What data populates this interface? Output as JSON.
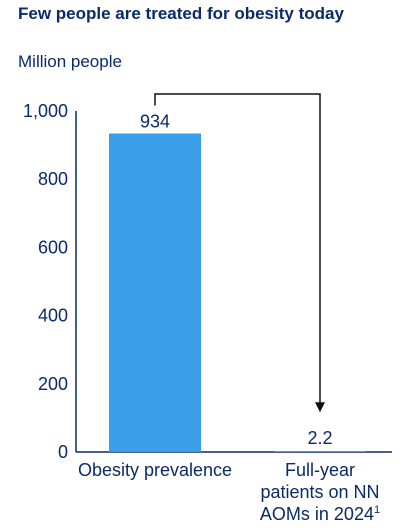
{
  "chart_data": {
    "type": "bar",
    "title": "Few people are treated for obesity today",
    "ylabel": "Million people",
    "ylim": [
      0,
      1000
    ],
    "yticks": [
      "0",
      "200",
      "400",
      "600",
      "800",
      "1,000"
    ],
    "categories": [
      "Obesity prevalence",
      "Full-year patients on NN AOMs in 2024"
    ],
    "category_lines": [
      [
        "Obesity prevalence"
      ],
      [
        "Full-year",
        "patients on NN",
        "AOMs in 2024"
      ]
    ],
    "footnote_marker": "1",
    "values": [
      934,
      2.2
    ],
    "value_labels": [
      "934",
      "2.2"
    ],
    "bar_color": "#3b9ee8",
    "annotation": "arrow from first bar to second bar"
  }
}
